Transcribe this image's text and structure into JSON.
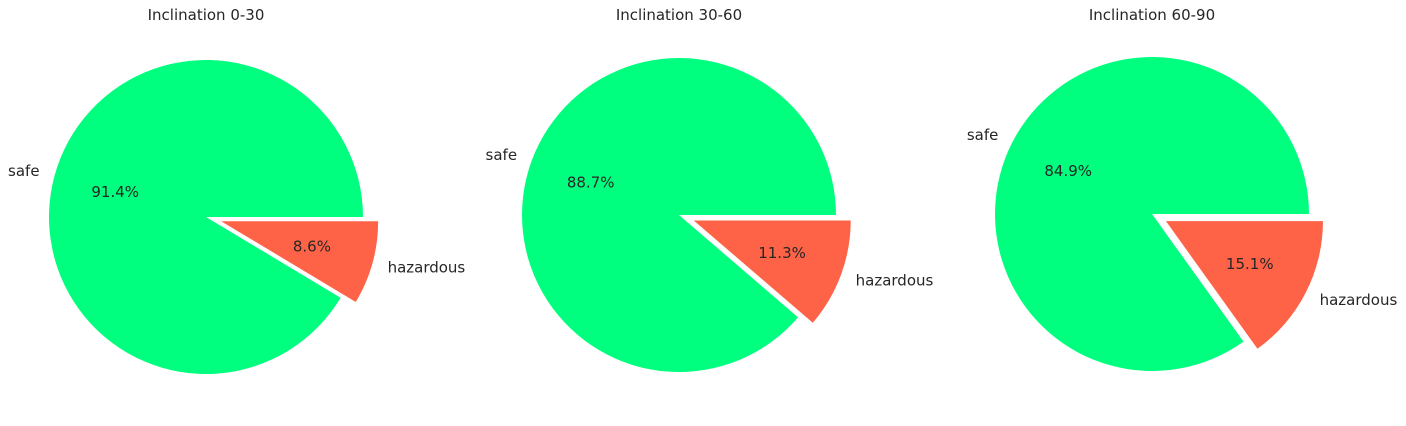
{
  "chart_data": [
    {
      "type": "pie",
      "title": "Inclination 0-30",
      "labels": [
        "safe",
        "hazardous"
      ],
      "values": [
        91.4,
        8.6
      ],
      "value_labels": [
        "91.4%",
        "8.6%"
      ],
      "explode": [
        0,
        0.1
      ],
      "colors": [
        "#00ff7f",
        "#ff6347"
      ]
    },
    {
      "type": "pie",
      "title": "Inclination 30-60",
      "labels": [
        "safe",
        "hazardous"
      ],
      "values": [
        88.7,
        11.3
      ],
      "value_labels": [
        "88.7%",
        "11.3%"
      ],
      "explode": [
        0,
        0.1
      ],
      "colors": [
        "#00ff7f",
        "#ff6347"
      ]
    },
    {
      "type": "pie",
      "title": "Inclination 60-90",
      "labels": [
        "safe",
        "hazardous"
      ],
      "values": [
        84.9,
        15.1
      ],
      "value_labels": [
        "84.9%",
        "15.1%"
      ],
      "explode": [
        0,
        0.1
      ],
      "colors": [
        "#00ff7f",
        "#ff6347"
      ]
    }
  ]
}
